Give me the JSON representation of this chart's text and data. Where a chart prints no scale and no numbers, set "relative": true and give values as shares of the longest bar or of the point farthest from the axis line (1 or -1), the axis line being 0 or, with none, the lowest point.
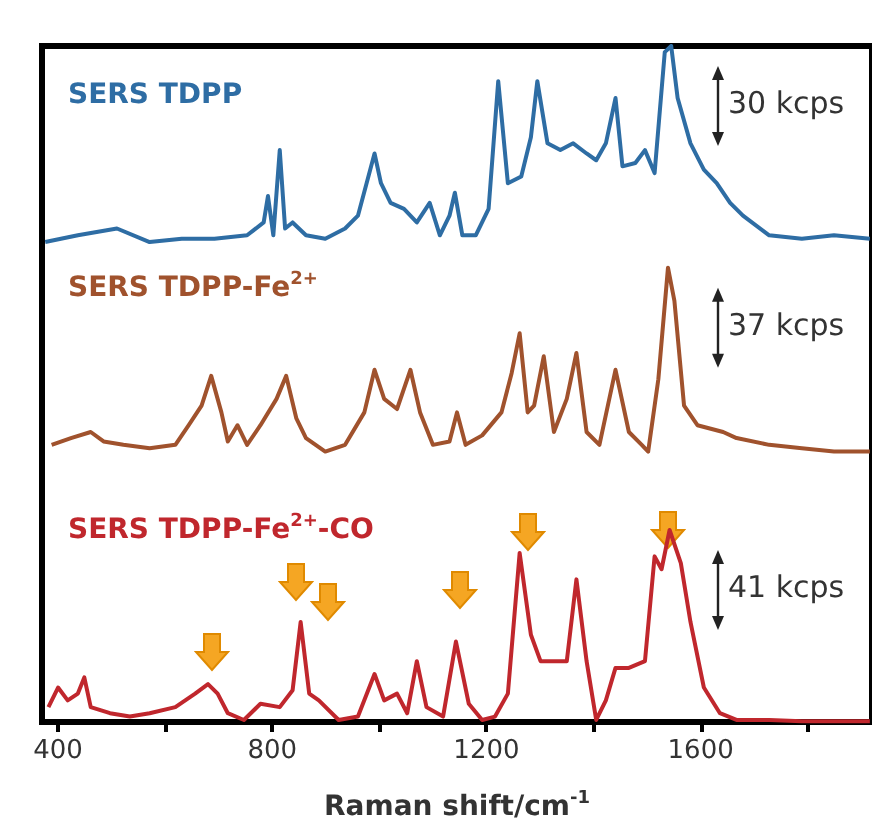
{
  "chart_data": {
    "type": "line",
    "relative": true,
    "xlabel": "Raman shift/cm$^{-1}$",
    "xlim": [
      370,
      1920
    ],
    "xticks": [
      400,
      {
        "value": 600,
        "label": null
      },
      800,
      {
        "value": 1000,
        "label": null
      },
      1200,
      {
        "value": 1400,
        "label": null
      },
      1600,
      {
        "value": 1800,
        "label": null
      }
    ],
    "series": [
      {
        "name": "SERS TDPP",
        "color": "#2e6da4",
        "x": [
          376,
          437,
          510,
          571,
          631,
          692,
          753,
          784,
          792,
          802,
          814,
          824,
          838,
          863,
          899,
          936,
          960,
          991,
          1003,
          1021,
          1046,
          1070,
          1094,
          1113,
          1131,
          1141,
          1155,
          1180,
          1204,
          1222,
          1240,
          1265,
          1283,
          1295,
          1314,
          1338,
          1362,
          1387,
          1405,
          1423,
          1441,
          1454,
          1478,
          1496,
          1514,
          1533,
          1545,
          1557,
          1581,
          1606,
          1630,
          1655,
          1679,
          1728,
          1789,
          1849,
          1916
        ],
        "values": [
          0.71,
          0.72,
          0.73,
          0.71,
          0.715,
          0.715,
          0.72,
          0.739,
          0.778,
          0.72,
          0.846,
          0.73,
          0.739,
          0.72,
          0.715,
          0.73,
          0.749,
          0.841,
          0.797,
          0.768,
          0.759,
          0.739,
          0.768,
          0.72,
          0.749,
          0.783,
          0.72,
          0.72,
          0.759,
          0.948,
          0.797,
          0.807,
          0.865,
          0.948,
          0.856,
          0.846,
          0.856,
          0.841,
          0.831,
          0.856,
          0.923,
          0.822,
          0.827,
          0.846,
          0.812,
          0.991,
          1,
          0.923,
          0.856,
          0.817,
          0.797,
          0.768,
          0.749,
          0.72,
          0.715,
          0.72,
          0.715
        ]
      },
      {
        "name": "SERS TDPP-Fe$^{2+}$",
        "color": "#a0522d",
        "x": [
          388,
          424,
          461,
          485,
          522,
          571,
          619,
          644,
          668,
          686,
          705,
          717,
          735,
          753,
          778,
          808,
          826,
          845,
          863,
          899,
          936,
          972,
          991,
          1009,
          1033,
          1058,
          1076,
          1100,
          1131,
          1145,
          1161,
          1192,
          1228,
          1247,
          1262,
          1277,
          1289,
          1307,
          1326,
          1350,
          1368,
          1387,
          1411,
          1441,
          1466,
          1490,
          1502,
          1521,
          1539,
          1551,
          1569,
          1594,
          1642,
          1667,
          1728,
          1789,
          1849,
          1916
        ],
        "values": [
          0.41,
          0.42,
          0.429,
          0.415,
          0.41,
          0.405,
          0.41,
          0.439,
          0.468,
          0.512,
          0.458,
          0.415,
          0.439,
          0.41,
          0.439,
          0.478,
          0.512,
          0.449,
          0.42,
          0.4,
          0.41,
          0.458,
          0.521,
          0.478,
          0.463,
          0.521,
          0.458,
          0.41,
          0.415,
          0.458,
          0.41,
          0.424,
          0.458,
          0.516,
          0.575,
          0.458,
          0.468,
          0.541,
          0.429,
          0.478,
          0.546,
          0.429,
          0.41,
          0.521,
          0.429,
          0.41,
          0.4,
          0.507,
          0.672,
          0.623,
          0.468,
          0.439,
          0.429,
          0.42,
          0.41,
          0.405,
          0.4,
          0.4
        ]
      },
      {
        "name": "SERS TDPP-Fe$^{2+}$-CO",
        "color": "#c0272d",
        "x": [
          382,
          400,
          418,
          437,
          449,
          461,
          497,
          534,
          571,
          619,
          656,
          680,
          698,
          717,
          747,
          778,
          814,
          838,
          853,
          869,
          887,
          924,
          960,
          991,
          1009,
          1033,
          1052,
          1070,
          1088,
          1119,
          1143,
          1167,
          1192,
          1216,
          1240,
          1262,
          1283,
          1301,
          1326,
          1350,
          1368,
          1387,
          1405,
          1423,
          1441,
          1466,
          1496,
          1514,
          1527,
          1542,
          1563,
          1581,
          1606,
          1636,
          1667,
          1728,
          1789,
          1916
        ],
        "values": [
          0.022,
          0.051,
          0.032,
          0.042,
          0.066,
          0.022,
          0.013,
          0.008,
          0.013,
          0.022,
          0.042,
          0.056,
          0.042,
          0.013,
          0.003,
          0.027,
          0.022,
          0.047,
          0.148,
          0.042,
          0.032,
          0.003,
          0.008,
          0.071,
          0.032,
          0.042,
          0.013,
          0.09,
          0.022,
          0.008,
          0.119,
          0.027,
          0.003,
          0.008,
          0.042,
          0.25,
          0.129,
          0.09,
          0.09,
          0.09,
          0.211,
          0.09,
          0.003,
          0.032,
          0.08,
          0.08,
          0.09,
          0.245,
          0.226,
          0.284,
          0.235,
          0.148,
          0.051,
          0.013,
          0.003,
          0.003,
          0.001,
          0.001
        ]
      }
    ],
    "annotations": [
      "30 kcps",
      "37 kcps",
      "41 kcps"
    ]
  }
}
